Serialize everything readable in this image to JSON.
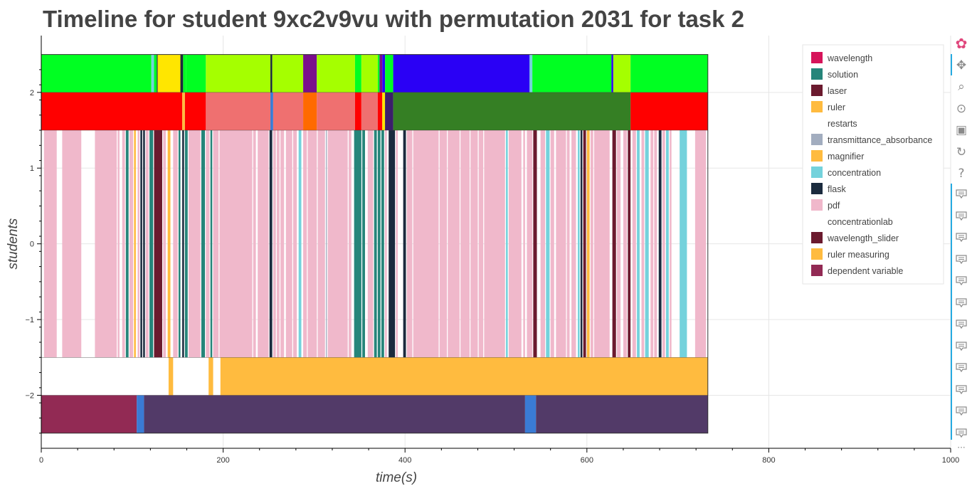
{
  "chart_data": {
    "type": "timeline",
    "title": "Timeline for student 9xc2v9vu with permutation 2031 for task 2",
    "xlabel": "time(s)",
    "ylabel": "students",
    "xlim": [
      0,
      1000
    ],
    "ylim": [
      -2.7,
      2.75
    ],
    "x_ticks": [
      0,
      200,
      400,
      600,
      800,
      1000
    ],
    "y_ticks": [
      2,
      1,
      0,
      -1,
      -2
    ],
    "y_tick_labels": [
      "2",
      "1",
      "0",
      "−1",
      "−2"
    ],
    "grid": true,
    "legend_position": "top-right",
    "legend": [
      {
        "name": "wavelength",
        "color": "#d6145a"
      },
      {
        "name": "solution",
        "color": "#26857a"
      },
      {
        "name": "laser",
        "color": "#6b1a2e"
      },
      {
        "name": "ruler",
        "color": "#ffbb3f"
      },
      {
        "name": "restarts",
        "color": "#ffffff"
      },
      {
        "name": "transmittance_absorbance",
        "color": "#a2adbf"
      },
      {
        "name": "magnifier",
        "color": "#ffbb3f"
      },
      {
        "name": "concentration",
        "color": "#74d2dc"
      },
      {
        "name": "flask",
        "color": "#1b2b3e"
      },
      {
        "name": "pdf",
        "color": "#f0b8cb"
      },
      {
        "name": "concentrationlab",
        "color": "#ffffff"
      },
      {
        "name": "wavelength_slider",
        "color": "#6b1a2e"
      },
      {
        "name": "ruler measuring",
        "color": "#ffbb3f"
      },
      {
        "name": "dependent variable",
        "color": "#922a54"
      }
    ],
    "rows": [
      {
        "y": [
          2,
          2.5
        ],
        "segments": [
          [
            0,
            121,
            "#00ff22"
          ],
          [
            121,
            124,
            "#74d2dc"
          ],
          [
            124,
            127,
            "#00ff22"
          ],
          [
            127,
            128,
            "#1b2b3e"
          ],
          [
            128,
            153,
            "#ffe600"
          ],
          [
            153,
            156,
            "#1b2b3e"
          ],
          [
            156,
            159,
            "#00ff22"
          ],
          [
            159,
            181,
            "#00ff22"
          ],
          [
            181,
            252,
            "#a5ff00"
          ],
          [
            252,
            254,
            "#1b2b3e"
          ],
          [
            254,
            288,
            "#a5ff00"
          ],
          [
            288,
            303,
            "#7a0f8c"
          ],
          [
            303,
            345,
            "#a5ff00"
          ],
          [
            345,
            352,
            "#00ff22"
          ],
          [
            352,
            370,
            "#a5ff00"
          ],
          [
            370,
            372,
            "#00ff22"
          ],
          [
            372,
            375,
            "#7a0f8c"
          ],
          [
            375,
            378,
            "#2a00f5"
          ],
          [
            378,
            387,
            "#00ff22"
          ],
          [
            387,
            537,
            "#2a00f5"
          ],
          [
            537,
            540,
            "#74d2dc"
          ],
          [
            540,
            627,
            "#00ff22"
          ],
          [
            627,
            629,
            "#2a00f5"
          ],
          [
            629,
            648,
            "#a5ff00"
          ],
          [
            648,
            733,
            "#00ff22"
          ]
        ]
      },
      {
        "y": [
          1.5,
          2
        ],
        "segments": [
          [
            0,
            155,
            "#ff0000"
          ],
          [
            155,
            158,
            "#ffbb3f"
          ],
          [
            158,
            181,
            "#ff0000"
          ],
          [
            181,
            252,
            "#ef7070"
          ],
          [
            252,
            255,
            "#3a7bd5"
          ],
          [
            255,
            288,
            "#ef7070"
          ],
          [
            288,
            303,
            "#ff6a00"
          ],
          [
            303,
            345,
            "#ef7070"
          ],
          [
            345,
            352,
            "#ff0000"
          ],
          [
            352,
            370,
            "#ef7070"
          ],
          [
            370,
            375,
            "#ff0000"
          ],
          [
            375,
            378,
            "#ffe600"
          ],
          [
            378,
            387,
            "#3b1e6b"
          ],
          [
            387,
            648,
            "#357f24"
          ],
          [
            648,
            733,
            "#ff0000"
          ]
        ]
      },
      {
        "y": [
          -1.5,
          1.5
        ],
        "segments": [
          [
            3,
            17,
            "#f0b8cb"
          ],
          [
            23,
            44,
            "#f0b8cb"
          ],
          [
            59,
            83,
            "#f0b8cb"
          ],
          [
            84,
            86,
            "#f0b8cb"
          ],
          [
            89,
            92,
            "#f0b8cb"
          ],
          [
            93,
            96,
            "#26857a"
          ],
          [
            97,
            101,
            "#f0b8cb"
          ],
          [
            102,
            104,
            "#ffbb3f"
          ],
          [
            106,
            108,
            "#f0b8cb"
          ],
          [
            109,
            111,
            "#1b2b3e"
          ],
          [
            112,
            114,
            "#1b2b3e"
          ],
          [
            115,
            118,
            "#f0b8cb"
          ],
          [
            119,
            123,
            "#26857a"
          ],
          [
            124,
            133,
            "#6b1a2e"
          ],
          [
            134,
            137,
            "#f0b8cb"
          ],
          [
            139,
            142,
            "#ffbb3f"
          ],
          [
            145,
            150,
            "#f0b8cb"
          ],
          [
            151,
            153,
            "#26857a"
          ],
          [
            155,
            157,
            "#1b2b3e"
          ],
          [
            158,
            161,
            "#26857a"
          ],
          [
            162,
            175,
            "#f0b8cb"
          ],
          [
            176,
            180,
            "#26857a"
          ],
          [
            181,
            185,
            "#f0b8cb"
          ],
          [
            186,
            188,
            "#26857a"
          ],
          [
            189,
            195,
            "#f0b8cb"
          ],
          [
            196,
            232,
            "#f0b8cb"
          ],
          [
            233,
            236,
            "#f0b8cb"
          ],
          [
            238,
            250,
            "#f0b8cb"
          ],
          [
            251,
            254,
            "#1b2b3e"
          ],
          [
            255,
            258,
            "#f0b8cb"
          ],
          [
            259,
            262,
            "#f0b8cb"
          ],
          [
            263,
            267,
            "#f0b8cb"
          ],
          [
            269,
            276,
            "#f0b8cb"
          ],
          [
            277,
            281,
            "#f0b8cb"
          ],
          [
            283,
            286,
            "#74d2dc"
          ],
          [
            288,
            292,
            "#f0b8cb"
          ],
          [
            293,
            303,
            "#f0b8cb"
          ],
          [
            304,
            312,
            "#f0b8cb"
          ],
          [
            313,
            314,
            "#a2adbf"
          ],
          [
            315,
            337,
            "#f0b8cb"
          ],
          [
            338,
            341,
            "#f0b8cb"
          ],
          [
            344,
            352,
            "#26857a"
          ],
          [
            353,
            356,
            "#26857a"
          ],
          [
            359,
            365,
            "#f0b8cb"
          ],
          [
            366,
            369,
            "#26857a"
          ],
          [
            370,
            373,
            "#26857a"
          ],
          [
            374,
            377,
            "#26857a"
          ],
          [
            378,
            380,
            "#f0b8cb"
          ],
          [
            382,
            389,
            "#1b2b3e"
          ],
          [
            390,
            392,
            "#f0b8cb"
          ],
          [
            398,
            401,
            "#1b2b3e"
          ],
          [
            402,
            408,
            "#f0b8cb"
          ],
          [
            409,
            437,
            "#f0b8cb"
          ],
          [
            438,
            446,
            "#f0b8cb"
          ],
          [
            447,
            460,
            "#f0b8cb"
          ],
          [
            461,
            471,
            "#f0b8cb"
          ],
          [
            472,
            480,
            "#f0b8cb"
          ],
          [
            481,
            486,
            "#f0b8cb"
          ],
          [
            487,
            510,
            "#f0b8cb"
          ],
          [
            511,
            513,
            "#74d2dc"
          ],
          [
            514,
            528,
            "#f0b8cb"
          ],
          [
            530,
            532,
            "#f0b8cb"
          ],
          [
            534,
            540,
            "#f0b8cb"
          ],
          [
            541,
            545,
            "#6b1a2e"
          ],
          [
            549,
            554,
            "#f0b8cb"
          ],
          [
            555,
            559,
            "#74d2dc"
          ],
          [
            560,
            564,
            "#f0b8cb"
          ],
          [
            566,
            577,
            "#f0b8cb"
          ],
          [
            578,
            581,
            "#f0b8cb"
          ],
          [
            583,
            588,
            "#f0b8cb"
          ],
          [
            590,
            592,
            "#74d2dc"
          ],
          [
            593,
            595,
            "#1b2b3e"
          ],
          [
            596,
            599,
            "#6b1a2e"
          ],
          [
            600,
            603,
            "#ffbb3f"
          ],
          [
            604,
            607,
            "#f0b8cb"
          ],
          [
            608,
            625,
            "#f0b8cb"
          ],
          [
            628,
            632,
            "#6b1a2e"
          ],
          [
            633,
            637,
            "#f0b8cb"
          ],
          [
            640,
            644,
            "#f0b8cb"
          ],
          [
            645,
            648,
            "#6b1a2e"
          ],
          [
            650,
            654,
            "#f0b8cb"
          ],
          [
            655,
            658,
            "#74d2dc"
          ],
          [
            660,
            663,
            "#f0b8cb"
          ],
          [
            664,
            668,
            "#74d2dc"
          ],
          [
            670,
            673,
            "#f0b8cb"
          ],
          [
            674,
            677,
            "#f0b8cb"
          ],
          [
            679,
            682,
            "#1b2b3e"
          ],
          [
            683,
            686,
            "#f0b8cb"
          ],
          [
            687,
            690,
            "#74d2dc"
          ],
          [
            691,
            693,
            "#f0b8cb"
          ],
          [
            702,
            710,
            "#74d2dc"
          ],
          [
            719,
            731,
            "#f0b8cb"
          ]
        ]
      },
      {
        "y": [
          -2,
          -1.5
        ],
        "segments": [
          [
            140,
            145,
            "#ffbb3f"
          ],
          [
            184,
            189,
            "#ffbb3f"
          ],
          [
            197,
            733,
            "#ffbb3f"
          ]
        ]
      },
      {
        "y": [
          -2.5,
          -2
        ],
        "segments": [
          [
            0,
            105,
            "#922a54"
          ],
          [
            105,
            113,
            "#3a7bd5"
          ],
          [
            113,
            532,
            "#523a68"
          ],
          [
            532,
            544,
            "#3a7bd5"
          ],
          [
            544,
            733,
            "#523a68"
          ]
        ]
      }
    ]
  },
  "toolbar": {
    "tools": [
      {
        "name": "bokeh-logo-icon",
        "glyph": "✿"
      },
      {
        "name": "pan-icon",
        "glyph": "✥"
      },
      {
        "name": "box-zoom-icon",
        "glyph": "⌕"
      },
      {
        "name": "wheel-zoom-icon",
        "glyph": "⊙"
      },
      {
        "name": "save-icon",
        "glyph": "▣"
      },
      {
        "name": "reset-icon",
        "glyph": "↻"
      },
      {
        "name": "help-icon",
        "glyph": "?"
      }
    ],
    "more_label": "···"
  }
}
